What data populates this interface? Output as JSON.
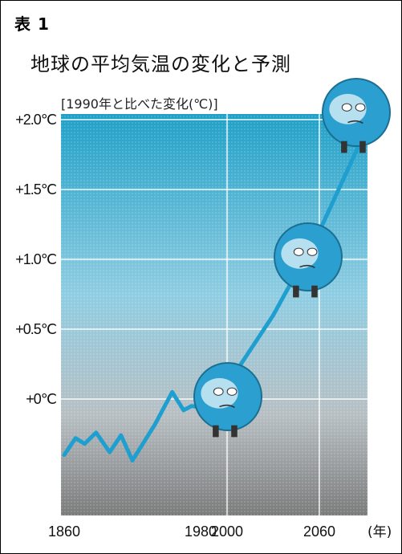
{
  "header": {
    "table_label": "表 1",
    "title": "地球の平均気温の変化と予測",
    "y_unit_label": "[1990年と比べた変化(℃)]"
  },
  "colors": {
    "sky_top": "#1fa0c7",
    "sky_mid": "#8fcde2",
    "ground_bottom": "#7b7b7b",
    "line": "#1f9fcf",
    "grid": "#ffffff",
    "globe": "#2b9fd0"
  },
  "chart_data": {
    "type": "line",
    "title": "地球の平均気温の変化と予測",
    "ylabel": "[1990年と比べた変化(℃)]",
    "xlabel": "(年)",
    "x_ticks": [
      "1860",
      "1980",
      "2000",
      "2060"
    ],
    "y_ticks": [
      "+2.0℃",
      "+1.5℃",
      "+1.0℃",
      "+0.5℃",
      "+0℃"
    ],
    "ylim": [
      -0.7,
      2.1
    ],
    "grid": true,
    "series": [
      {
        "values": [
          {
            "x": 1860,
            "y": -0.4
          },
          {
            "x": 1870,
            "y": -0.28
          },
          {
            "x": 1878,
            "y": -0.32
          },
          {
            "x": 1888,
            "y": -0.24
          },
          {
            "x": 1900,
            "y": -0.38
          },
          {
            "x": 1910,
            "y": -0.26
          },
          {
            "x": 1920,
            "y": -0.44
          },
          {
            "x": 1940,
            "y": -0.18
          },
          {
            "x": 1955,
            "y": 0.05
          },
          {
            "x": 1965,
            "y": -0.08
          },
          {
            "x": 1972,
            "y": -0.05
          },
          {
            "x": 1980,
            "y": -0.06
          },
          {
            "x": 1990,
            "y": 0.0
          },
          {
            "x": 2000,
            "y": 0.1
          },
          {
            "x": 2030,
            "y": 0.6
          },
          {
            "x": 2060,
            "y": 1.2
          },
          {
            "x": 2100,
            "y": 2.1
          }
        ]
      }
    ]
  }
}
